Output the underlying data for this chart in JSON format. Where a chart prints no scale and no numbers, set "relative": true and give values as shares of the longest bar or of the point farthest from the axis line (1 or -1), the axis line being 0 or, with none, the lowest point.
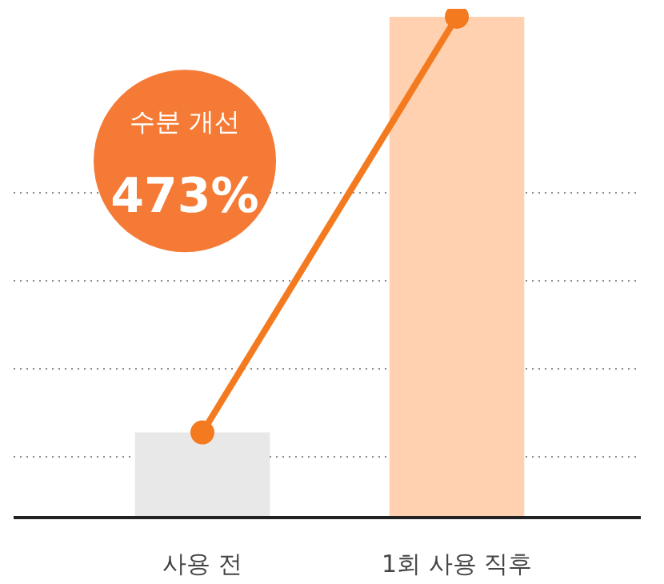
{
  "chart_data": {
    "type": "bar",
    "relative": true,
    "categories": [
      "사용 전",
      "1회 사용 직후"
    ],
    "series": [
      {
        "colors": [
          "#e8e8e8",
          "#ffd1b0"
        ],
        "values": [
          0.17,
          1
        ]
      },
      {
        "type": "line",
        "color": "#f47a20",
        "values": [
          0.17,
          1
        ],
        "marker": "circle"
      }
    ],
    "annotations": [
      "수분 개선",
      "473%"
    ],
    "grid": "y"
  }
}
